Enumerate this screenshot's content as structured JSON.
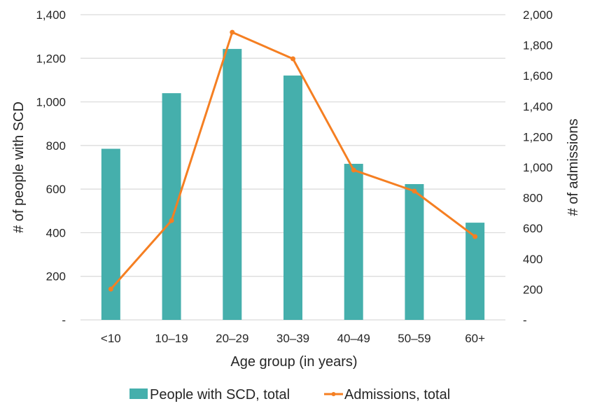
{
  "chart_data": {
    "type": "bar+line",
    "title": "",
    "categories": [
      "<10",
      "10–19",
      "20–29",
      "30–39",
      "40–49",
      "50–59",
      "60+"
    ],
    "series": [
      {
        "name": "People with SCD, total",
        "type": "bar",
        "axis": "left",
        "color": "#45AFAC",
        "values": [
          785,
          1040,
          1243,
          1121,
          716,
          623,
          446
        ]
      },
      {
        "name": "Admissions, total",
        "type": "line",
        "axis": "right",
        "color": "#F57F22",
        "values": [
          202,
          651,
          1885,
          1711,
          982,
          844,
          546
        ]
      }
    ],
    "xlabel": "Age group (in years)",
    "ylabel": "# of people with SCD",
    "y2label": "# of admissions",
    "ylim": [
      0,
      1400
    ],
    "y2lim": [
      0,
      2000
    ],
    "yticks": [
      0,
      200,
      400,
      600,
      800,
      1000,
      1200,
      1400
    ],
    "yticklabels": [
      "-",
      "200",
      "400",
      "600",
      "800",
      "1,000",
      "1,200",
      "1,400"
    ],
    "y2ticks": [
      0,
      200,
      400,
      600,
      800,
      1000,
      1200,
      1400,
      1600,
      1800,
      2000
    ],
    "y2ticklabels": [
      "-",
      "200",
      "400",
      "600",
      "800",
      "1,000",
      "1,200",
      "1,400",
      "1,600",
      "1,800",
      "2,000"
    ],
    "grid": true,
    "legend": "bottom-center"
  }
}
